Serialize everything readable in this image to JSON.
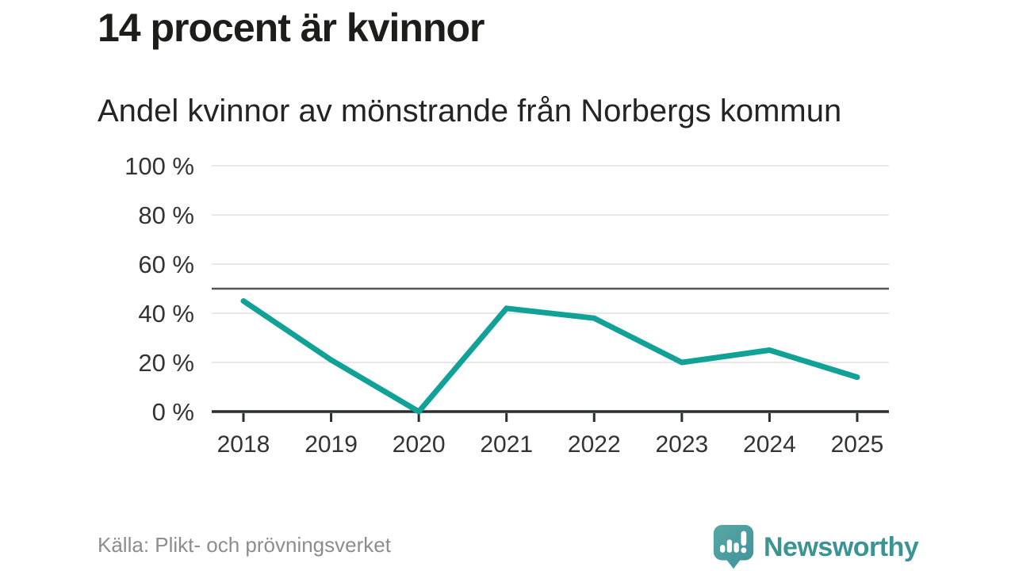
{
  "title": "14 procent är kvinnor",
  "subtitle": "Andel kvinnor av mönstrande från Norbergs kommun",
  "source": {
    "text": "Källa: Plikt- och prövningsverket"
  },
  "brand": {
    "name": "Newsworthy"
  },
  "colors": {
    "line": "#11a197",
    "grid": "#e0e0e0",
    "reference_line": "#54565b",
    "axis": "#2b2d2e",
    "tick_label": "#333333",
    "title_text": "#1d1d1b",
    "source_text": "#8c8c92",
    "brand_teal": "#3a9494",
    "logo_bubble_top": "#58a7a5",
    "logo_bubble_bottom": "#3f929b"
  },
  "chart_data": {
    "type": "line",
    "title": "14 procent är kvinnor",
    "subtitle": "Andel kvinnor av mönstrande från Norbergs kommun",
    "categories": [
      "2018",
      "2019",
      "2020",
      "2021",
      "2022",
      "2023",
      "2024",
      "2025"
    ],
    "series": [
      {
        "name": "Andel kvinnor (%)",
        "values": [
          45,
          21,
          0,
          42,
          38,
          20,
          25,
          14
        ]
      }
    ],
    "xlabel": "",
    "ylabel": "",
    "ylim": [
      0,
      100
    ],
    "yticks": [
      0,
      20,
      40,
      60,
      80,
      100
    ],
    "ytick_suffix": " %",
    "reference_line": 50,
    "grid": "horizontal",
    "legend": "none"
  }
}
